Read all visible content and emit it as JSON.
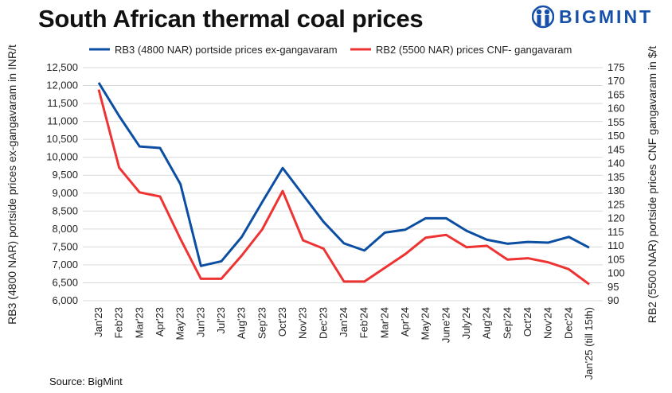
{
  "title": "South African thermal coal prices",
  "logo": {
    "text": "BIGMINT",
    "color": "#1650a8"
  },
  "source": "Source: BigMint",
  "chart_data": {
    "type": "line",
    "title": "South African thermal coal prices",
    "categories": [
      "Jan'23",
      "Feb'23",
      "Mar'23",
      "Apr'23",
      "May'23",
      "Jun'23",
      "Jul'23",
      "Aug'23",
      "Sep'23",
      "Oct'23",
      "Nov'23",
      "Dec'23",
      "Jan'24",
      "Feb'24",
      "Mar'24",
      "Apr'24",
      "May'24",
      "June'24",
      "July'24",
      "Aug'24",
      "Sep'24",
      "Oct'24",
      "Nov'24",
      "Dec'24",
      "Jan'25 (till 15th)"
    ],
    "ylabel": "RB3 (4800 NAR) portside prices ex-gangavaram in INR/t",
    "y2label": "RB2 (5500 NAR) portside prices CNF gangavaram in $/t",
    "ylim": [
      6000,
      12500
    ],
    "y2lim": [
      90,
      175
    ],
    "yticks": [
      "6,000",
      "6,500",
      "7,000",
      "7,500",
      "8,000",
      "8,500",
      "9,000",
      "9,500",
      "10,000",
      "10,500",
      "11,000",
      "11,500",
      "12,000",
      "12,500"
    ],
    "y2ticks": [
      "90",
      "95",
      "100",
      "105",
      "110",
      "115",
      "120",
      "125",
      "130",
      "135",
      "140",
      "145",
      "150",
      "155",
      "160",
      "165",
      "170",
      "175"
    ],
    "grid": true,
    "legend_placement": "top",
    "series": [
      {
        "name": "RB3 (4800 NAR) portside prices ex-gangavaram",
        "axis": "left",
        "color": "#0b4ea2",
        "values": [
          12080,
          11150,
          10300,
          10260,
          9250,
          6970,
          7100,
          7780,
          8750,
          9700,
          8950,
          8200,
          7600,
          7400,
          7900,
          7980,
          8300,
          8300,
          7950,
          7700,
          7590,
          7640,
          7620,
          7780,
          7480
        ]
      },
      {
        "name": "RB2 (5500 NAR) prices CNF- gangavaram",
        "axis": "right",
        "color": "#ee3333",
        "values": [
          167,
          138.5,
          129.5,
          128,
          112.5,
          98,
          98,
          106.5,
          116,
          130,
          112,
          109,
          97,
          97,
          102,
          107,
          113,
          114,
          109.5,
          110,
          105,
          105.5,
          104,
          101.5,
          96
        ]
      }
    ]
  }
}
